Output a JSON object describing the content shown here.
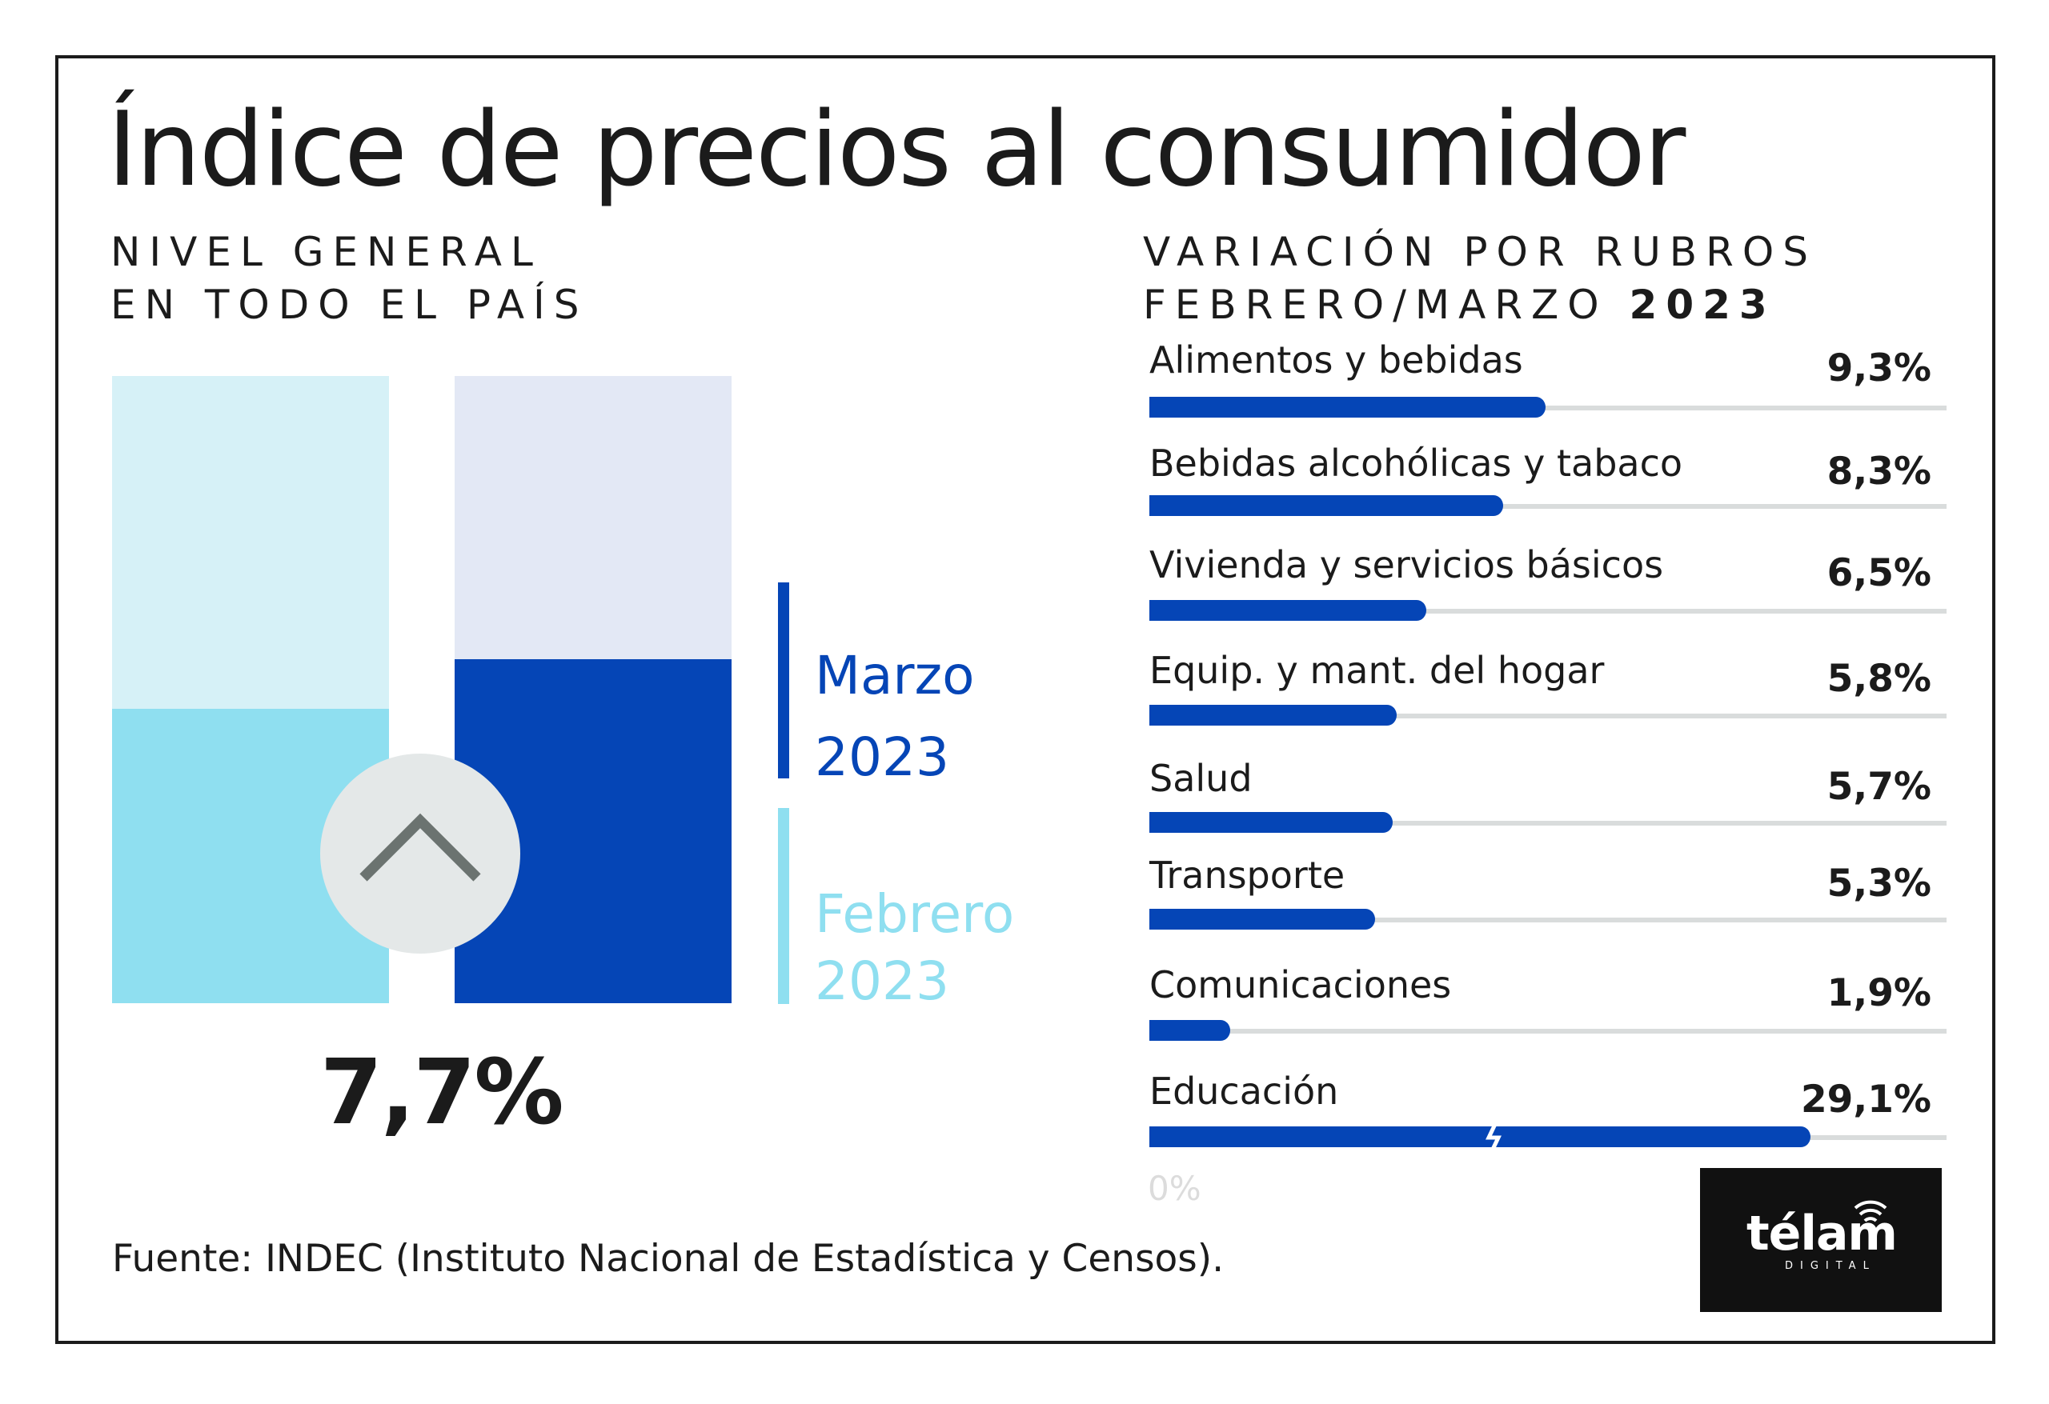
{
  "title": "Índice de precios al consumidor",
  "left_subtitle": {
    "line1": "NIVEL GENERAL",
    "line2": "EN TODO EL PAÍS"
  },
  "right_subtitle": {
    "line1": "VARIACIÓN POR RUBROS",
    "line2_prefix": "FEBRERO/MARZO",
    "line2_year": "2023"
  },
  "legend": {
    "marzo": {
      "month": "Marzo",
      "year": "2023"
    },
    "febrero": {
      "month": "Febrero",
      "year": "2023"
    }
  },
  "headline_value": "7,7%",
  "source": "Fuente: INDEC (Instituto Nacional de Estadística y Censos).",
  "logo": {
    "name": "télam",
    "sub": "DIGITAL"
  },
  "icons": {
    "trend": "chevron-up-icon",
    "axis_break": "lightning-break-icon"
  },
  "colors": {
    "marzo_fill": "#0545b6",
    "marzo_track": "#e3e8f5",
    "febrero_fill": "#8fdff0",
    "febrero_track": "#d6f1f7",
    "bar_fill": "#0545b6",
    "bar_track": "#d9dcdc"
  },
  "chart_data": [
    {
      "type": "bar",
      "categories": [
        "Febrero 2023",
        "Marzo 2023"
      ],
      "values": [
        6.6,
        7.7
      ],
      "value_labels": [
        "",
        "7,7%"
      ]
    },
    {
      "type": "bar",
      "orientation": "horizontal",
      "title": "VARIACIÓN POR RUBROS FEBRERO/MARZO 2023",
      "categories": [
        "Alimentos y bebidas",
        "Bebidas alcohólicas y tabaco",
        "Vivienda y servicios básicos",
        "Equip. y mant. del hogar",
        "Salud",
        "Transporte",
        "Comunicaciones",
        "Educación"
      ],
      "values": [
        9.3,
        8.3,
        6.5,
        5.8,
        5.7,
        5.3,
        1.9,
        29.1
      ],
      "value_labels": [
        "9,3%",
        "8,3%",
        "6,5%",
        "5,8%",
        "5,7%",
        "5,3%",
        "1,9%",
        "29,1%"
      ],
      "axis_min_label": "0%",
      "xlim": [
        0,
        18.7
      ],
      "broken_axis_category": "Educación",
      "broken_bar_display_value": 15.5
    }
  ]
}
